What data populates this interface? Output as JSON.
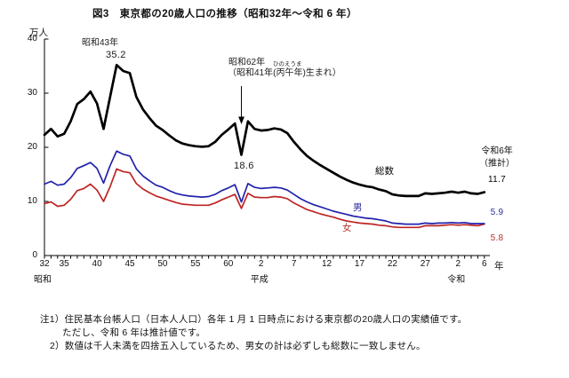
{
  "title": "図3　東京都の20歳人口の推移（昭和32年～令和 6 年）",
  "chart_data": {
    "type": "line",
    "title": "図3　東京都の20歳人口の推移（昭和32年～令和6年）",
    "y_axis": {
      "unit": "万人",
      "ticks": [
        0,
        10,
        20,
        30,
        40
      ],
      "min": 0,
      "max": 40,
      "grid": false
    },
    "x_axis": {
      "unit": "年",
      "start_year": 1957,
      "end_year": 2024,
      "tick_every_year": true,
      "ticks": [
        {
          "label": "32",
          "year": 1957
        },
        {
          "label": "35",
          "year": 1960
        },
        {
          "label": "40",
          "year": 1965
        },
        {
          "label": "45",
          "year": 1970
        },
        {
          "label": "50",
          "year": 1975
        },
        {
          "label": "55",
          "year": 1980
        },
        {
          "label": "60",
          "year": 1985
        },
        {
          "label": "2",
          "year": 1990
        },
        {
          "label": "7",
          "year": 1995
        },
        {
          "label": "12",
          "year": 2000
        },
        {
          "label": "17",
          "year": 2005
        },
        {
          "label": "22",
          "year": 2010
        },
        {
          "label": "27",
          "year": 2015
        },
        {
          "label": "2",
          "year": 2020
        },
        {
          "label": "6",
          "year": 2024
        }
      ],
      "eras": [
        {
          "label": "昭和",
          "year": 1957
        },
        {
          "label": "平成",
          "year": 1990
        },
        {
          "label": "令和",
          "year": 2020
        }
      ]
    },
    "series": [
      {
        "name": "総数",
        "color": "#000000",
        "width": 2.7,
        "values": [
          22.3,
          23.4,
          22.0,
          22.5,
          24.8,
          28.0,
          28.9,
          30.3,
          28.1,
          23.4,
          29.3,
          35.2,
          34.1,
          33.7,
          29.3,
          27.0,
          25.4,
          24.0,
          23.2,
          22.2,
          21.3,
          20.7,
          20.4,
          20.2,
          20.1,
          20.2,
          21.0,
          22.3,
          23.3,
          24.4,
          18.6,
          24.8,
          23.4,
          23.1,
          23.2,
          23.5,
          23.3,
          22.6,
          21.0,
          19.6,
          18.4,
          17.5,
          16.7,
          16.0,
          15.3,
          14.6,
          14.0,
          13.5,
          13.1,
          12.8,
          12.6,
          12.2,
          11.9,
          11.3,
          11.1,
          11.0,
          11.0,
          11.0,
          11.5,
          11.4,
          11.5,
          11.6,
          11.8,
          11.6,
          11.8,
          11.5,
          11.4,
          11.7
        ]
      },
      {
        "name": "男",
        "color": "#2222ac",
        "width": 1.7,
        "values": [
          13.2,
          13.7,
          13.0,
          13.2,
          14.4,
          16.1,
          16.6,
          17.2,
          16.1,
          13.4,
          16.6,
          19.3,
          18.7,
          18.4,
          16.0,
          14.7,
          13.8,
          13.0,
          12.6,
          12.0,
          11.5,
          11.2,
          11.0,
          10.9,
          10.8,
          10.9,
          11.3,
          12.0,
          12.5,
          13.1,
          9.9,
          13.3,
          12.6,
          12.4,
          12.5,
          12.6,
          12.5,
          12.1,
          11.3,
          10.5,
          9.9,
          9.4,
          9.0,
          8.6,
          8.2,
          7.9,
          7.6,
          7.3,
          7.1,
          6.9,
          6.8,
          6.6,
          6.4,
          6.0,
          5.9,
          5.8,
          5.8,
          5.8,
          6.0,
          5.9,
          6.0,
          6.0,
          6.1,
          6.0,
          6.1,
          5.9,
          5.9,
          5.9
        ]
      },
      {
        "name": "女",
        "color": "#bf2424",
        "width": 1.7,
        "values": [
          9.6,
          9.9,
          9.1,
          9.3,
          10.4,
          12.0,
          12.4,
          13.2,
          12.1,
          10.0,
          12.7,
          16.0,
          15.5,
          15.3,
          13.3,
          12.3,
          11.6,
          11.0,
          10.6,
          10.2,
          9.8,
          9.5,
          9.4,
          9.3,
          9.3,
          9.3,
          9.7,
          10.3,
          10.8,
          11.3,
          8.7,
          11.5,
          10.8,
          10.7,
          10.7,
          10.9,
          10.8,
          10.5,
          9.7,
          9.1,
          8.5,
          8.1,
          7.7,
          7.4,
          7.1,
          6.7,
          6.4,
          6.2,
          6.0,
          5.9,
          5.8,
          5.6,
          5.5,
          5.3,
          5.2,
          5.2,
          5.2,
          5.2,
          5.5,
          5.5,
          5.5,
          5.6,
          5.7,
          5.6,
          5.7,
          5.6,
          5.5,
          5.8
        ]
      }
    ],
    "annotations": {
      "peak": {
        "label": "昭和43年",
        "value": "35.2",
        "year": 1968
      },
      "dip": {
        "label": "昭和62年",
        "furigana": "ひのえうま",
        "note": "（昭和41年(丙午年)生まれ）",
        "value": "18.6",
        "year": 1987
      },
      "latest": {
        "line1": "令和6年",
        "line2": "（推計）",
        "total": "11.7",
        "male": "5.9",
        "female": "5.8"
      }
    },
    "legend_labels": {
      "total": "総数",
      "male": "男",
      "female": "女"
    }
  },
  "notes": {
    "line1": "注1）住民基本台帳人口（日本人人口）各年 1 月 1 日時点における東京都の20歳人口の実績値です。",
    "line2": "ただし、令和 6 年は推計値です。",
    "line3": "2）数値は千人未満を四捨五入しているため、男女の計は必ずしも総数に一致しません。"
  }
}
